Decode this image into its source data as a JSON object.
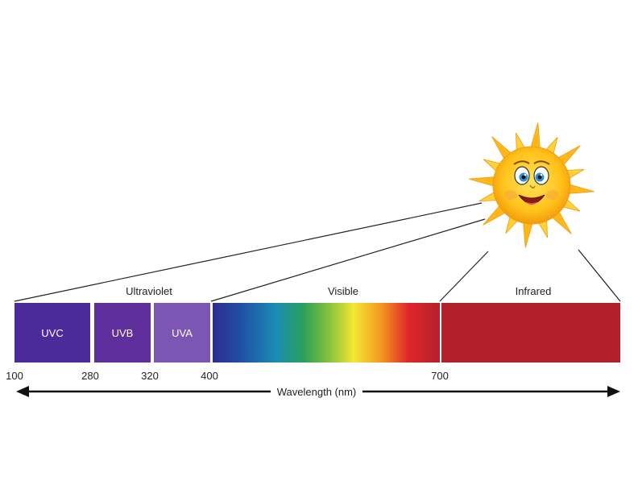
{
  "regions": {
    "ultraviolet": "Ultraviolet",
    "visible": "Visible",
    "infrared": "Infrared"
  },
  "bands": [
    {
      "label": "UVC",
      "from_nm": 100,
      "to_nm": 280,
      "color": "#4b2a99"
    },
    {
      "label": "UVB",
      "from_nm": 280,
      "to_nm": 320,
      "color": "#5e2f9d"
    },
    {
      "label": "UVA",
      "from_nm": 320,
      "to_nm": 400,
      "color": "#7d55b3"
    }
  ],
  "infrared_color": "#b3202c",
  "ticks": [
    "100",
    "280",
    "320",
    "400",
    "700"
  ],
  "axis_label": "Wavelength (nm)",
  "sun_icon": "smiling-sun-icon"
}
